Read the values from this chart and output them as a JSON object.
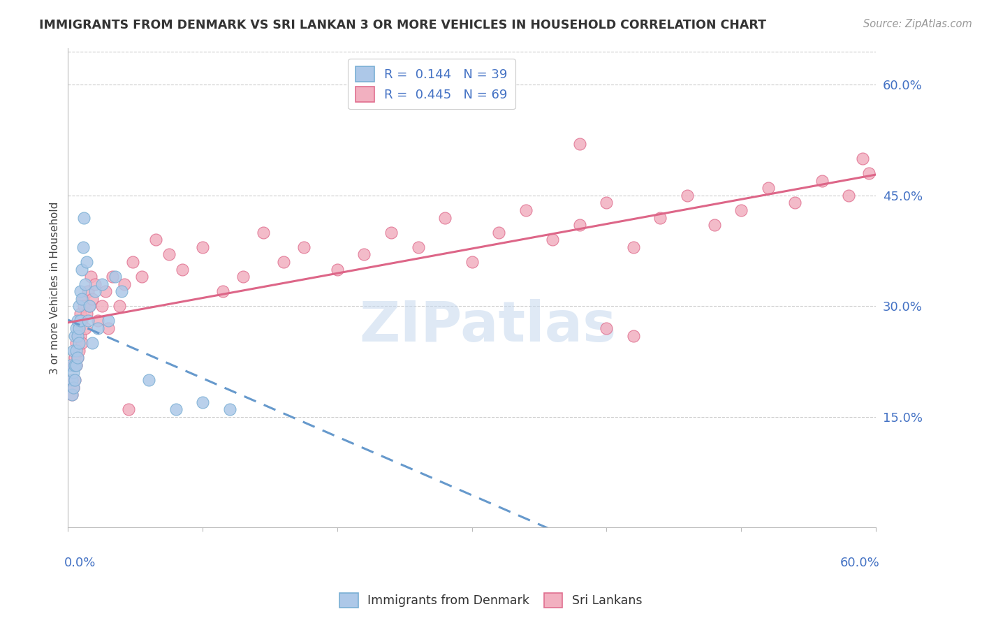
{
  "title": "IMMIGRANTS FROM DENMARK VS SRI LANKAN 3 OR MORE VEHICLES IN HOUSEHOLD CORRELATION CHART",
  "source": "Source: ZipAtlas.com",
  "ylabel": "3 or more Vehicles in Household",
  "denmark_color": "#adc8e8",
  "denmark_edge": "#7aafd4",
  "srilanka_color": "#f2b0c0",
  "srilanka_edge": "#e07090",
  "trend_denmark_color": "#6699cc",
  "trend_srilanka_color": "#dd6688",
  "watermark_color": "#c5d8ee",
  "denmark_R": 0.144,
  "denmark_N": 39,
  "srilanka_R": 0.445,
  "srilanka_N": 69,
  "xmin": 0.0,
  "xmax": 0.6,
  "ymin": 0.0,
  "ymax": 0.65,
  "dk_x": [
    0.002,
    0.003,
    0.003,
    0.004,
    0.004,
    0.004,
    0.005,
    0.005,
    0.005,
    0.006,
    0.006,
    0.006,
    0.007,
    0.007,
    0.007,
    0.008,
    0.008,
    0.008,
    0.009,
    0.009,
    0.01,
    0.01,
    0.011,
    0.012,
    0.013,
    0.014,
    0.015,
    0.016,
    0.018,
    0.02,
    0.022,
    0.025,
    0.03,
    0.035,
    0.04,
    0.06,
    0.08,
    0.1,
    0.12
  ],
  "dk_y": [
    0.22,
    0.2,
    0.18,
    0.24,
    0.21,
    0.19,
    0.26,
    0.22,
    0.2,
    0.27,
    0.24,
    0.22,
    0.28,
    0.26,
    0.23,
    0.3,
    0.27,
    0.25,
    0.32,
    0.28,
    0.35,
    0.31,
    0.38,
    0.42,
    0.33,
    0.36,
    0.28,
    0.3,
    0.25,
    0.32,
    0.27,
    0.33,
    0.28,
    0.34,
    0.32,
    0.2,
    0.16,
    0.17,
    0.16
  ],
  "sl_x": [
    0.003,
    0.003,
    0.004,
    0.004,
    0.005,
    0.005,
    0.006,
    0.006,
    0.007,
    0.007,
    0.008,
    0.008,
    0.009,
    0.009,
    0.01,
    0.01,
    0.011,
    0.012,
    0.013,
    0.014,
    0.015,
    0.016,
    0.017,
    0.018,
    0.02,
    0.022,
    0.025,
    0.028,
    0.03,
    0.033,
    0.038,
    0.042,
    0.048,
    0.055,
    0.065,
    0.075,
    0.085,
    0.1,
    0.115,
    0.13,
    0.145,
    0.16,
    0.175,
    0.2,
    0.22,
    0.24,
    0.26,
    0.28,
    0.3,
    0.32,
    0.34,
    0.36,
    0.38,
    0.4,
    0.42,
    0.44,
    0.46,
    0.48,
    0.5,
    0.52,
    0.54,
    0.56,
    0.58,
    0.59,
    0.595,
    0.38,
    0.045,
    0.4,
    0.42
  ],
  "sl_y": [
    0.2,
    0.18,
    0.22,
    0.19,
    0.23,
    0.2,
    0.25,
    0.22,
    0.26,
    0.23,
    0.27,
    0.24,
    0.29,
    0.26,
    0.28,
    0.25,
    0.31,
    0.3,
    0.27,
    0.29,
    0.32,
    0.3,
    0.34,
    0.31,
    0.33,
    0.28,
    0.3,
    0.32,
    0.27,
    0.34,
    0.3,
    0.33,
    0.36,
    0.34,
    0.39,
    0.37,
    0.35,
    0.38,
    0.32,
    0.34,
    0.4,
    0.36,
    0.38,
    0.35,
    0.37,
    0.4,
    0.38,
    0.42,
    0.36,
    0.4,
    0.43,
    0.39,
    0.41,
    0.44,
    0.38,
    0.42,
    0.45,
    0.41,
    0.43,
    0.46,
    0.44,
    0.47,
    0.45,
    0.5,
    0.48,
    0.52,
    0.16,
    0.27,
    0.26
  ]
}
